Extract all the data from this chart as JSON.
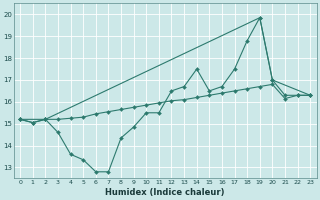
{
  "xlabel": "Humidex (Indice chaleur)",
  "background_color": "#cce8e8",
  "grid_color": "#ffffff",
  "line_color": "#2d7a6e",
  "xlim": [
    -0.5,
    23.5
  ],
  "ylim": [
    12.5,
    20.5
  ],
  "yticks": [
    13,
    14,
    15,
    16,
    17,
    18,
    19,
    20
  ],
  "xticks": [
    0,
    1,
    2,
    3,
    4,
    5,
    6,
    7,
    8,
    9,
    10,
    11,
    12,
    13,
    14,
    15,
    16,
    17,
    18,
    19,
    20,
    21,
    22,
    23
  ],
  "line1_x": [
    0,
    1,
    2,
    3,
    4,
    5,
    6,
    7,
    8,
    9,
    10,
    11,
    12,
    13,
    14,
    15,
    16,
    17,
    18,
    19,
    20,
    21,
    22,
    23
  ],
  "line1_y": [
    15.2,
    15.05,
    15.2,
    14.6,
    13.6,
    13.35,
    12.8,
    12.8,
    14.35,
    14.85,
    15.5,
    15.5,
    16.5,
    16.7,
    17.5,
    16.5,
    16.7,
    17.5,
    18.8,
    19.85,
    17.0,
    16.3,
    16.3,
    16.3
  ],
  "line2_x": [
    0,
    1,
    2,
    3,
    4,
    5,
    6,
    7,
    8,
    9,
    10,
    11,
    12,
    13,
    14,
    15,
    16,
    17,
    18,
    19,
    20,
    21,
    22,
    23
  ],
  "line2_y": [
    15.2,
    15.05,
    15.2,
    15.2,
    15.25,
    15.3,
    15.45,
    15.55,
    15.65,
    15.75,
    15.85,
    15.95,
    16.05,
    16.1,
    16.2,
    16.3,
    16.4,
    16.5,
    16.6,
    16.7,
    16.8,
    16.15,
    16.3,
    16.3
  ],
  "line3_x": [
    0,
    2,
    19,
    20,
    23
  ],
  "line3_y": [
    15.2,
    15.2,
    19.85,
    17.0,
    16.3
  ]
}
